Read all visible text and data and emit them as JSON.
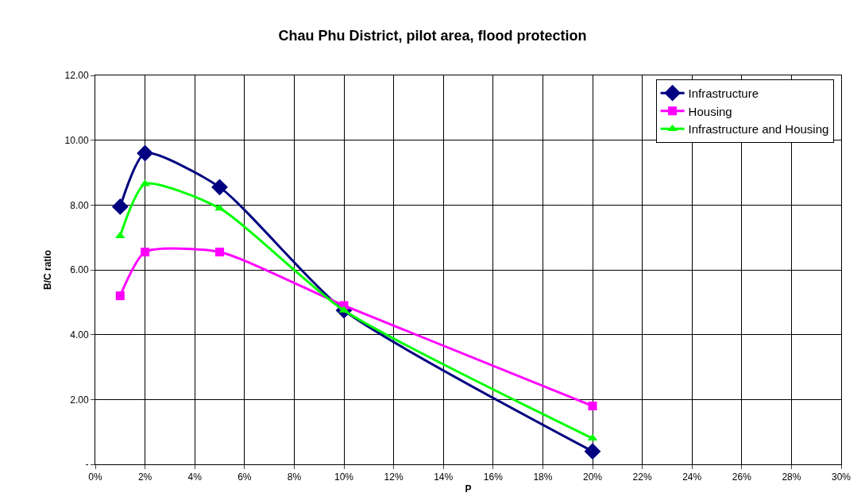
{
  "chart_data": {
    "type": "line",
    "title": "Chau Phu District, pilot area, flood protection",
    "xlabel": "P",
    "ylabel": "B/C ratio",
    "x": [
      1,
      2,
      5,
      10,
      20
    ],
    "series": [
      {
        "name": "Infrastructure",
        "color": "#000080",
        "marker": "diamond",
        "values": [
          7.95,
          9.6,
          8.55,
          4.75,
          0.4
        ]
      },
      {
        "name": "Housing",
        "color": "#ff00ff",
        "marker": "square",
        "values": [
          5.2,
          6.55,
          6.55,
          4.9,
          1.8
        ]
      },
      {
        "name": "Infrastructure and Housing",
        "color": "#00ff00",
        "marker": "triangle",
        "values": [
          7.05,
          8.65,
          7.9,
          4.75,
          0.8
        ]
      }
    ],
    "xlim": [
      0,
      30
    ],
    "xticks": [
      {
        "value": 0,
        "label": "0%"
      },
      {
        "value": 2,
        "label": "2%"
      },
      {
        "value": 4,
        "label": "4%"
      },
      {
        "value": 6,
        "label": "6%"
      },
      {
        "value": 8,
        "label": "8%"
      },
      {
        "value": 10,
        "label": "10%"
      },
      {
        "value": 12,
        "label": "12%"
      },
      {
        "value": 14,
        "label": "14%"
      },
      {
        "value": 16,
        "label": "16%"
      },
      {
        "value": 18,
        "label": "18%"
      },
      {
        "value": 20,
        "label": "20%"
      },
      {
        "value": 22,
        "label": "22%"
      },
      {
        "value": 24,
        "label": "24%"
      },
      {
        "value": 26,
        "label": "26%"
      },
      {
        "value": 28,
        "label": "28%"
      },
      {
        "value": 30,
        "label": "30%"
      }
    ],
    "ylim": [
      0,
      12
    ],
    "yticks": [
      {
        "value": 0,
        "label": "-"
      },
      {
        "value": 2,
        "label": "2.00"
      },
      {
        "value": 4,
        "label": "4.00"
      },
      {
        "value": 6,
        "label": "6.00"
      },
      {
        "value": 8,
        "label": "8.00"
      },
      {
        "value": 10,
        "label": "10.00"
      },
      {
        "value": 12,
        "label": "12.00"
      }
    ],
    "grid": true,
    "legend": "top right",
    "line_style": "solid"
  }
}
